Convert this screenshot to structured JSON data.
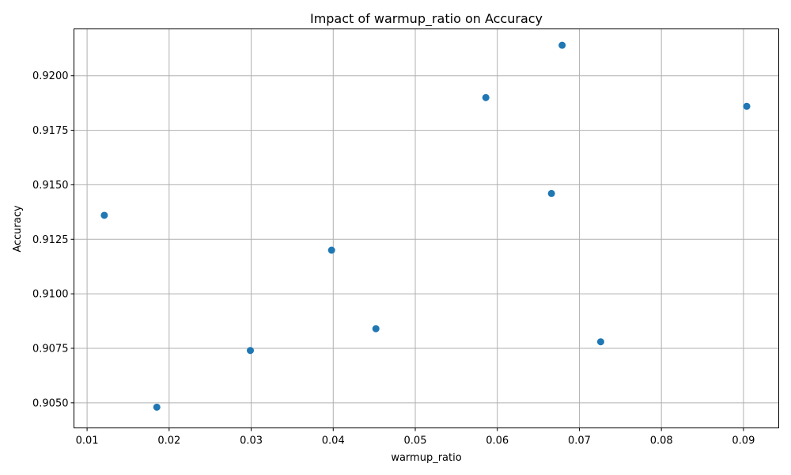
{
  "chart_data": {
    "type": "scatter",
    "title": "Impact of warmup_ratio on Accuracy",
    "xlabel": "warmup_ratio",
    "ylabel": "Accuracy",
    "xlim": [
      0.0084,
      0.0943
    ],
    "ylim": [
      0.90385,
      0.92215
    ],
    "xticks": [
      0.01,
      0.02,
      0.03,
      0.04,
      0.05,
      0.06,
      0.07,
      0.08,
      0.09
    ],
    "xtick_labels": [
      "0.01",
      "0.02",
      "0.03",
      "0.04",
      "0.05",
      "0.06",
      "0.07",
      "0.08",
      "0.09"
    ],
    "yticks": [
      0.905,
      0.9075,
      0.91,
      0.9125,
      0.915,
      0.9175,
      0.92
    ],
    "ytick_labels": [
      "0.9050",
      "0.9075",
      "0.9100",
      "0.9125",
      "0.9150",
      "0.9175",
      "0.9200"
    ],
    "grid": true,
    "marker_color": "#1f77b4",
    "points": [
      {
        "x": 0.0121,
        "y": 0.9136
      },
      {
        "x": 0.0185,
        "y": 0.9048
      },
      {
        "x": 0.0299,
        "y": 0.9074
      },
      {
        "x": 0.0398,
        "y": 0.912
      },
      {
        "x": 0.0452,
        "y": 0.9084
      },
      {
        "x": 0.0586,
        "y": 0.919
      },
      {
        "x": 0.0666,
        "y": 0.9146
      },
      {
        "x": 0.0679,
        "y": 0.9214
      },
      {
        "x": 0.0726,
        "y": 0.9078
      },
      {
        "x": 0.0904,
        "y": 0.9186
      }
    ]
  }
}
